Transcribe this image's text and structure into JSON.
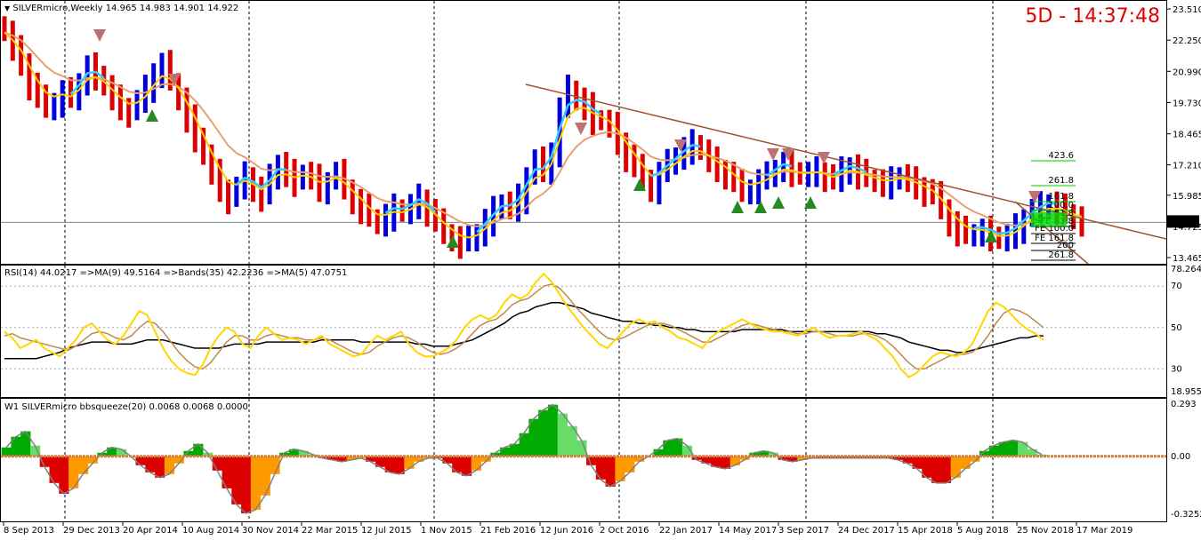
{
  "header": {
    "dropdown_glyph": "▼",
    "symbol_line": "SILVERmicro,Weekly  14.965 14.983 14.901 14.922",
    "timer": "5D - 14:37:48"
  },
  "rsi_header": "RSI(14) 44.0217  =>MA(9) 49.5164  =>Bands(35) 42.2236  =>MA(5) 47.0751",
  "bbs_header": "W1 SILVERmicro bbsqueeze(20) 0.0068 0.0068 0.0000",
  "colors": {
    "bull_bar": "#0000dd",
    "bear_bar": "#dd0000",
    "ema_fast": "#ffcc00",
    "ema_slow": "#e8a070",
    "ema_cyan": "#33ccff",
    "trendline": "#a0522d",
    "rsi": "#ffd700",
    "rsi_ma": "#c0874f",
    "rsi_band": "#000000",
    "bbs_pos": "#00aa00",
    "bbs_neg": "#dd0000",
    "bbs_neg2": "#ff9900"
  },
  "chart_data": [
    {
      "type": "candlestick",
      "title": "SILVERmicro,Weekly",
      "ohlc_last": {
        "open": 14.965,
        "high": 14.983,
        "low": 14.901,
        "close": 14.922
      },
      "ylim": [
        13.465,
        23.8
      ],
      "y_ticks": [
        "23.510",
        "22.250",
        "20.990",
        "19.730",
        "18.465",
        "17.210",
        "15.985",
        "14.725",
        "13.465"
      ],
      "current_price": "14.922",
      "x_tick_labels": [
        "8 Sep 2013",
        "29 Dec 2013",
        "20 Apr 2014",
        "10 Aug 2014",
        "30 Nov 2014",
        "22 Mar 2015",
        "12 Jul 2015",
        "1 Nov 2015",
        "21 Feb 2016",
        "12 Jun 2016",
        "2 Oct 2016",
        "22 Jan 2017",
        "14 May 2017",
        "3 Sep 2017",
        "24 Dec 2017",
        "15 Apr 2018",
        "5 Aug 2018",
        "25 Nov 2018",
        "17 Mar 2019"
      ],
      "closes": [
        22.6,
        21.9,
        21.4,
        20.5,
        19.9,
        19.6,
        19.8,
        20.2,
        19.9,
        20.6,
        21.2,
        20.9,
        20.4,
        19.9,
        19.6,
        19.4,
        19.8,
        20.3,
        21.0,
        21.3,
        20.6,
        19.9,
        19.1,
        18.4,
        17.6,
        16.9,
        16.3,
        15.9,
        16.3,
        16.8,
        16.3,
        16.0,
        16.7,
        17.3,
        16.9,
        16.6,
        16.9,
        16.7,
        16.3,
        16.6,
        16.9,
        16.3,
        15.8,
        15.5,
        15.1,
        14.9,
        15.2,
        15.5,
        15.3,
        15.6,
        15.9,
        15.4,
        14.9,
        14.5,
        14.3,
        14.1,
        14.2,
        14.5,
        15.0,
        15.4,
        15.7,
        15.5,
        15.9,
        16.8,
        17.4,
        17.0,
        17.8,
        19.5,
        20.3,
        19.9,
        19.6,
        19.1,
        19.0,
        18.8,
        18.2,
        17.6,
        17.1,
        16.7,
        16.3,
        16.9,
        17.3,
        17.6,
        17.9,
        18.1,
        17.8,
        17.4,
        17.1,
        16.9,
        16.5,
        16.2,
        16.3,
        16.6,
        16.8,
        17.1,
        17.3,
        17.0,
        16.8,
        16.9,
        17.0,
        16.8,
        16.6,
        17.0,
        17.2,
        16.9,
        16.7,
        16.6,
        16.5,
        16.6,
        16.8,
        16.6,
        16.4,
        16.2,
        16.0,
        15.5,
        14.9,
        14.6,
        14.4,
        14.5,
        14.6,
        14.4,
        14.2,
        14.4,
        14.7,
        15.1,
        15.4,
        15.6,
        15.7,
        15.5,
        15.3,
        15.1,
        14.9
      ],
      "fib_labels": [
        "423.6",
        "261.8",
        "161.8",
        "100.0",
        "61.8",
        "FE 61.8",
        "FE 100.0",
        "FE 161.8",
        "200",
        "261.8"
      ]
    },
    {
      "type": "line",
      "title": "RSI(14)",
      "series_names": [
        "RSI(14)",
        "MA(9)",
        "Bands(35)",
        "MA(5)"
      ],
      "last_values": {
        "RSI(14)": 44.0217,
        "MA(9)": 49.5164,
        "Bands(35)": 42.2236,
        "MA(5)": 47.0751
      },
      "ylim": [
        18.9556,
        78.2645
      ],
      "y_ticks": [
        "78.2645",
        "70",
        "50",
        "30",
        "18.9556"
      ],
      "rsi": [
        48,
        45,
        40,
        42,
        44,
        40,
        38,
        36,
        40,
        44,
        50,
        52,
        48,
        44,
        42,
        46,
        52,
        58,
        56,
        48,
        40,
        34,
        30,
        28,
        27,
        32,
        40,
        46,
        50,
        48,
        42,
        40,
        46,
        50,
        47,
        44,
        45,
        44,
        42,
        44,
        46,
        42,
        40,
        38,
        36,
        37,
        42,
        46,
        44,
        46,
        48,
        42,
        38,
        36,
        36,
        38,
        40,
        44,
        50,
        54,
        56,
        54,
        56,
        62,
        66,
        64,
        66,
        72,
        76,
        72,
        66,
        60,
        55,
        50,
        46,
        42,
        40,
        44,
        48,
        52,
        54,
        52,
        53,
        50,
        48,
        45,
        44,
        42,
        40,
        45,
        48,
        50,
        52,
        54,
        52,
        50,
        49,
        48,
        48,
        47,
        46,
        48,
        50,
        47,
        45,
        46,
        46,
        47,
        48,
        46,
        44,
        40,
        36,
        30,
        26,
        28,
        32,
        36,
        38,
        37,
        36,
        38,
        42,
        50,
        58,
        62,
        60,
        56,
        52,
        49,
        47,
        44
      ],
      "rsi_ma": [
        46,
        47,
        45,
        44,
        43,
        42,
        41,
        40,
        39,
        41,
        44,
        47,
        48,
        47,
        45,
        44,
        46,
        50,
        53,
        52,
        48,
        43,
        38,
        34,
        31,
        30,
        33,
        38,
        43,
        46,
        46,
        44,
        44,
        46,
        47,
        46,
        45,
        45,
        44,
        44,
        45,
        44,
        42,
        40,
        38,
        37,
        38,
        41,
        43,
        45,
        46,
        45,
        43,
        40,
        38,
        37,
        38,
        40,
        43,
        47,
        51,
        53,
        54,
        57,
        61,
        63,
        64,
        67,
        70,
        71,
        69,
        65,
        60,
        56,
        52,
        48,
        45,
        44,
        45,
        47,
        49,
        51,
        52,
        52,
        51,
        49,
        47,
        45,
        43,
        43,
        45,
        47,
        49,
        51,
        52,
        51,
        50,
        49,
        48,
        48,
        47,
        47,
        48,
        48,
        47,
        46,
        46,
        46,
        47,
        47,
        46,
        44,
        41,
        37,
        33,
        30,
        30,
        32,
        34,
        36,
        37,
        37,
        38,
        41,
        46,
        52,
        57,
        59,
        58,
        56,
        53,
        50
      ],
      "rsi_band": [
        35,
        35,
        35,
        35,
        35,
        36,
        37,
        38,
        40,
        41,
        42,
        43,
        43,
        43,
        42,
        42,
        42,
        43,
        44,
        44,
        44,
        43,
        42,
        41,
        40,
        40,
        40,
        40,
        41,
        42,
        42,
        42,
        42,
        43,
        43,
        43,
        43,
        43,
        43,
        43,
        44,
        44,
        44,
        44,
        44,
        43,
        43,
        43,
        43,
        43,
        43,
        43,
        42,
        42,
        41,
        41,
        41,
        42,
        43,
        44,
        46,
        48,
        50,
        52,
        55,
        57,
        58,
        60,
        61,
        62,
        62,
        61,
        60,
        59,
        57,
        56,
        55,
        54,
        53,
        53,
        52,
        52,
        51,
        51,
        50,
        50,
        49,
        49,
        48,
        48,
        48,
        48,
        48,
        49,
        49,
        49,
        49,
        49,
        49,
        48,
        48,
        48,
        48,
        48,
        48,
        48,
        48,
        48,
        48,
        48,
        47,
        47,
        46,
        45,
        43,
        42,
        41,
        40,
        39,
        39,
        38,
        38,
        39,
        40,
        41,
        42,
        43,
        44,
        45,
        45,
        46,
        46
      ]
    },
    {
      "type": "bar",
      "title": "bbsqueeze(20)",
      "last_values": [
        0.0068,
        0.0068,
        0.0
      ],
      "ylim": [
        -0.3252,
        0.293
      ],
      "y_ticks": [
        "0.293",
        "0.00",
        "-0.3252"
      ],
      "values": [
        0.05,
        0.11,
        0.14,
        0.06,
        -0.06,
        -0.15,
        -0.21,
        -0.18,
        -0.1,
        -0.04,
        0.02,
        0.05,
        0.04,
        0.0,
        -0.05,
        -0.09,
        -0.12,
        -0.1,
        -0.04,
        0.03,
        0.07,
        0.02,
        -0.08,
        -0.18,
        -0.27,
        -0.32,
        -0.3,
        -0.22,
        -0.1,
        0.02,
        0.04,
        0.03,
        0.01,
        -0.01,
        -0.02,
        -0.03,
        -0.02,
        -0.01,
        -0.03,
        -0.06,
        -0.09,
        -0.1,
        -0.07,
        -0.03,
        -0.01,
        -0.01,
        -0.04,
        -0.09,
        -0.11,
        -0.08,
        -0.03,
        0.02,
        0.05,
        0.07,
        0.13,
        0.21,
        0.26,
        0.29,
        0.24,
        0.17,
        0.09,
        -0.05,
        -0.13,
        -0.17,
        -0.14,
        -0.09,
        -0.03,
        0.0,
        0.04,
        0.09,
        0.1,
        0.06,
        -0.02,
        -0.04,
        -0.06,
        -0.07,
        -0.05,
        -0.02,
        0.02,
        0.03,
        0.02,
        -0.02,
        -0.03,
        -0.02,
        -0.01,
        -0.01,
        -0.01,
        -0.01,
        -0.01,
        -0.01,
        -0.01,
        -0.01,
        -0.01,
        -0.02,
        -0.04,
        -0.07,
        -0.12,
        -0.15,
        -0.15,
        -0.12,
        -0.07,
        -0.03,
        0.03,
        0.06,
        0.08,
        0.09,
        0.08,
        0.04,
        0.01
      ]
    }
  ]
}
